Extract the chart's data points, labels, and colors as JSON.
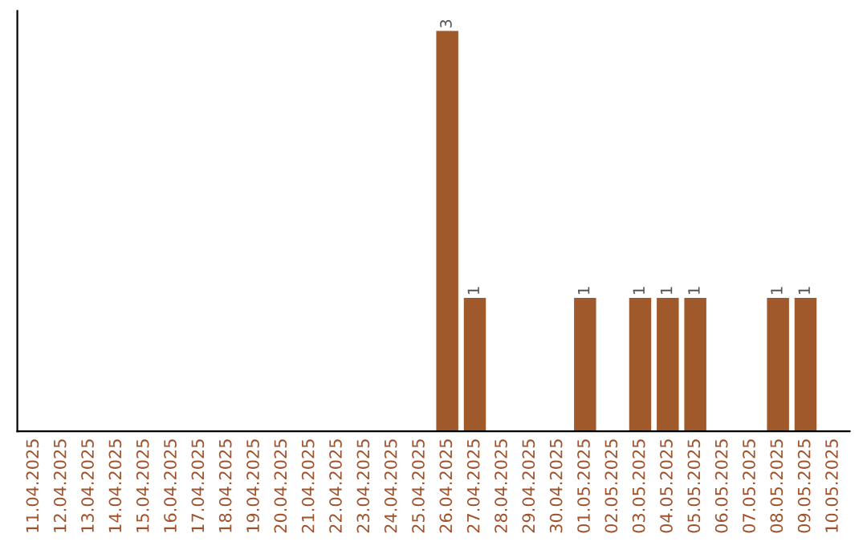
{
  "chart_data": {
    "type": "bar",
    "categories": [
      "11.04.2025",
      "12.04.2025",
      "13.04.2025",
      "14.04.2025",
      "15.04.2025",
      "16.04.2025",
      "17.04.2025",
      "18.04.2025",
      "19.04.2025",
      "20.04.2025",
      "21.04.2025",
      "22.04.2025",
      "23.04.2025",
      "24.04.2025",
      "25.04.2025",
      "26.04.2025",
      "27.04.2025",
      "28.04.2025",
      "29.04.2025",
      "30.04.2025",
      "01.05.2025",
      "02.05.2025",
      "03.05.2025",
      "04.05.2025",
      "05.05.2025",
      "06.05.2025",
      "07.05.2025",
      "08.05.2025",
      "09.05.2025",
      "10.05.2025"
    ],
    "values": [
      null,
      null,
      null,
      null,
      null,
      null,
      null,
      null,
      null,
      null,
      null,
      null,
      null,
      null,
      null,
      3,
      1,
      null,
      null,
      null,
      1,
      null,
      1,
      1,
      1,
      null,
      null,
      1,
      1,
      null
    ],
    "data_labels": true,
    "color": "#a0592a",
    "tick_labels": "x",
    "grid": false,
    "legend": false
  }
}
